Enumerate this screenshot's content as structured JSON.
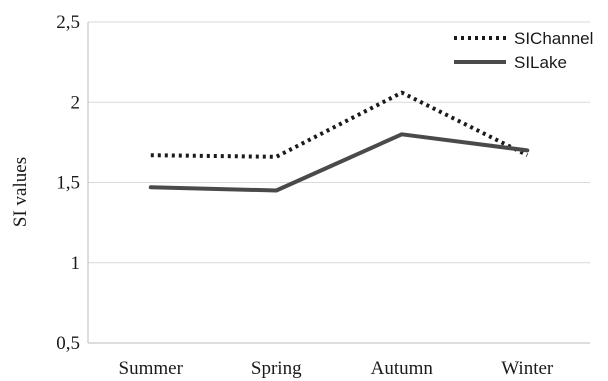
{
  "chart_data": {
    "type": "line",
    "title": "",
    "xlabel": "",
    "ylabel": "SI values",
    "categories": [
      "Summer",
      "Spring",
      "Autumn",
      "Winter"
    ],
    "ylim": [
      0.5,
      2.5
    ],
    "yticks": [
      0.5,
      1,
      1.5,
      2,
      2.5
    ],
    "ytick_labels": [
      "0,5",
      "1",
      "1,5",
      "2",
      "2,5"
    ],
    "grid": "horizontal",
    "legend_position": "top-right",
    "series": [
      {
        "name": "SIChannel",
        "values": [
          1.67,
          1.66,
          2.06,
          1.67
        ],
        "style": "dotted",
        "color": "#1a1a1a"
      },
      {
        "name": "SILake",
        "values": [
          1.47,
          1.45,
          1.8,
          1.7
        ],
        "style": "solid",
        "color": "#4a4a4a"
      }
    ]
  }
}
